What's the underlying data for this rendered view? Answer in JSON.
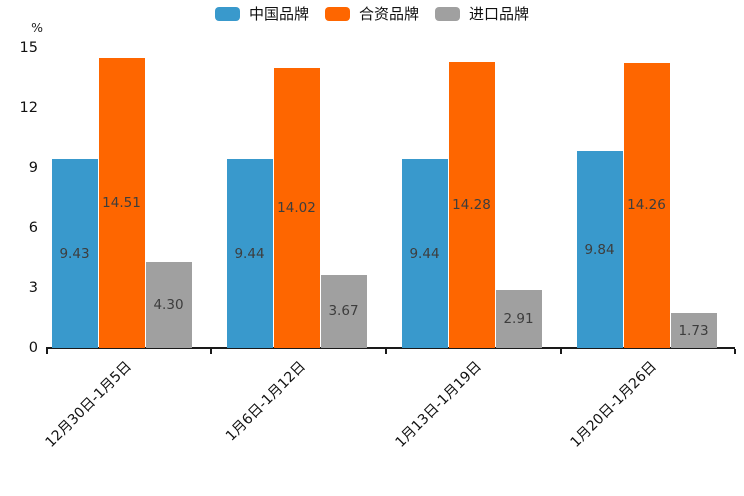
{
  "chart_data": {
    "type": "bar",
    "title": "",
    "xlabel": "",
    "ylabel": "%",
    "ylim": [
      0,
      15
    ],
    "yticks": [
      0,
      3,
      6,
      9,
      12,
      15
    ],
    "grid": false,
    "legend_position": "top-center",
    "value_labels": "inside-bar, two decimals",
    "categories": [
      "12月30日-1月5日",
      "1月6日-1月12日",
      "1月13日-1月19日",
      "1月20日-1月26日"
    ],
    "series": [
      {
        "name": "中国品牌",
        "color": "#3999cc",
        "values": [
          9.43,
          9.44,
          9.44,
          9.84
        ]
      },
      {
        "name": "合资品牌",
        "color": "#fe6600",
        "values": [
          14.51,
          14.02,
          14.28,
          14.26
        ]
      },
      {
        "name": "进口品牌",
        "color": "#a0a0a0",
        "values": [
          4.3,
          3.67,
          2.91,
          1.73
        ]
      }
    ],
    "colors": {
      "axis": "#1a1a1a",
      "bar_label_text": "#3d3d3d",
      "tick_text": "#111111",
      "background": "#ffffff"
    }
  }
}
